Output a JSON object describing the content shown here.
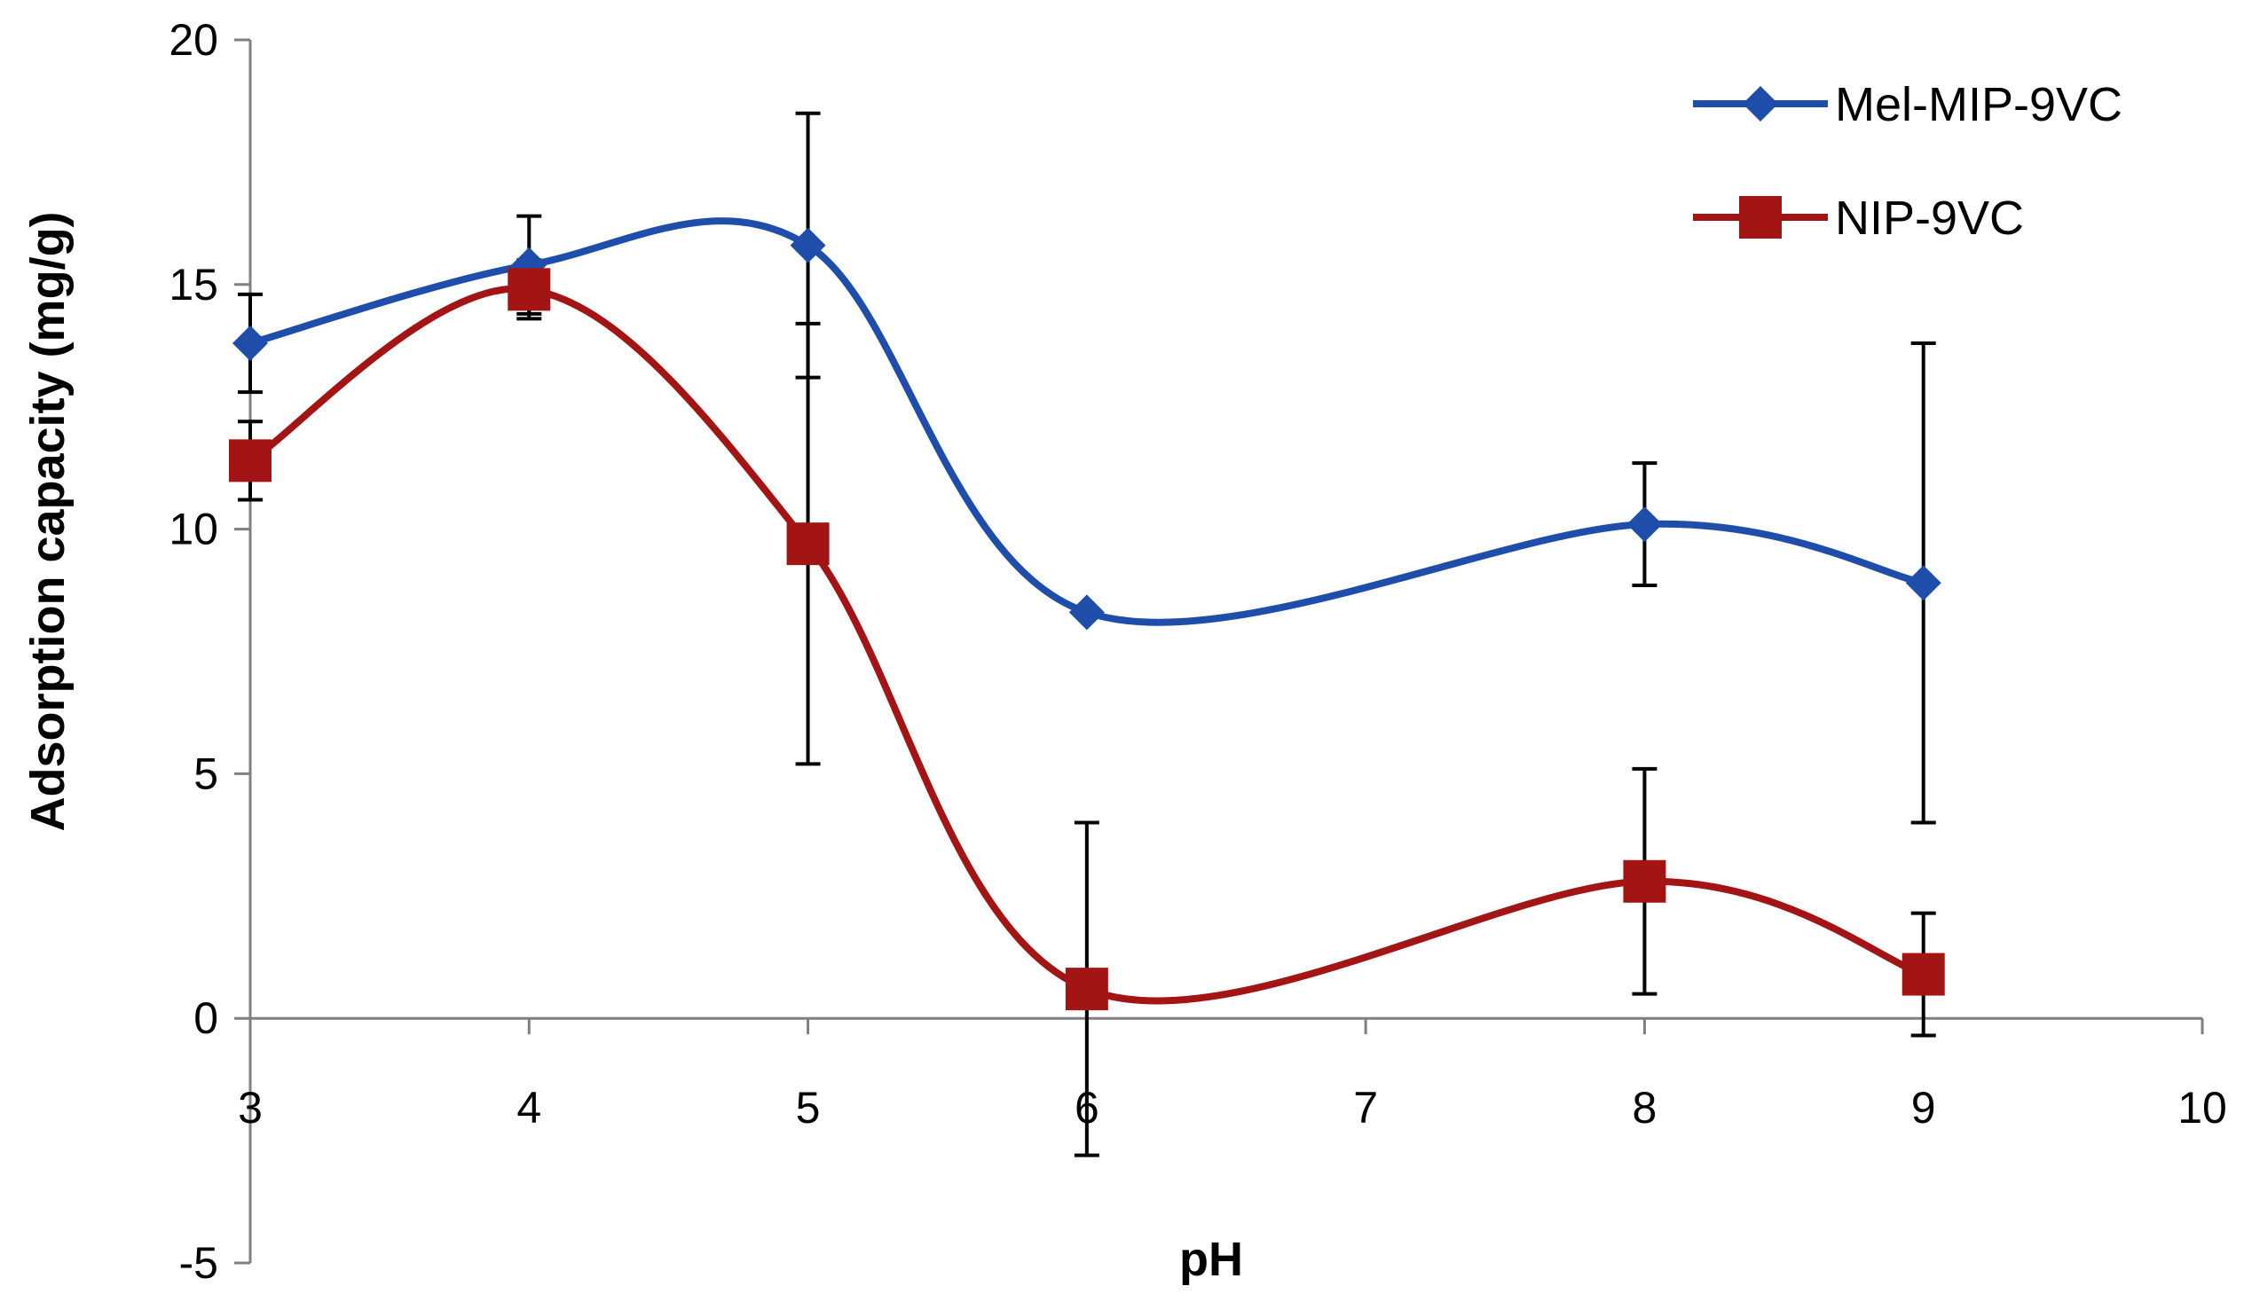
{
  "chart_data": {
    "type": "line",
    "title": "",
    "xlabel": "pH",
    "ylabel": "Adsorption capacity (mg/g)",
    "xlim": [
      3,
      10
    ],
    "ylim": [
      -5,
      20
    ],
    "xticks": [
      3,
      4,
      5,
      6,
      7,
      8,
      9,
      10
    ],
    "yticks": [
      -5,
      0,
      5,
      10,
      15,
      20
    ],
    "categories": [
      "3",
      "4",
      "5",
      "6",
      "8",
      "9"
    ],
    "category_positions": [
      3,
      4,
      5,
      6,
      8,
      9
    ],
    "grid": false,
    "smooth": true,
    "legend_position": "top-right",
    "series": [
      {
        "name": "Mel-MIP-9VC",
        "color": "#1F4EAA",
        "marker": "diamond",
        "values": [
          13.8,
          15.4,
          15.8,
          8.3,
          10.1,
          8.9
        ],
        "errors": [
          1.0,
          1.0,
          2.7,
          0.0,
          1.25,
          4.9
        ]
      },
      {
        "name": "NIP-9VC",
        "color": "#A31515",
        "marker": "square",
        "values": [
          11.4,
          14.9,
          9.7,
          0.6,
          2.8,
          0.9
        ],
        "errors": [
          0.8,
          0.6,
          4.5,
          3.4,
          2.3,
          1.25
        ]
      }
    ]
  }
}
